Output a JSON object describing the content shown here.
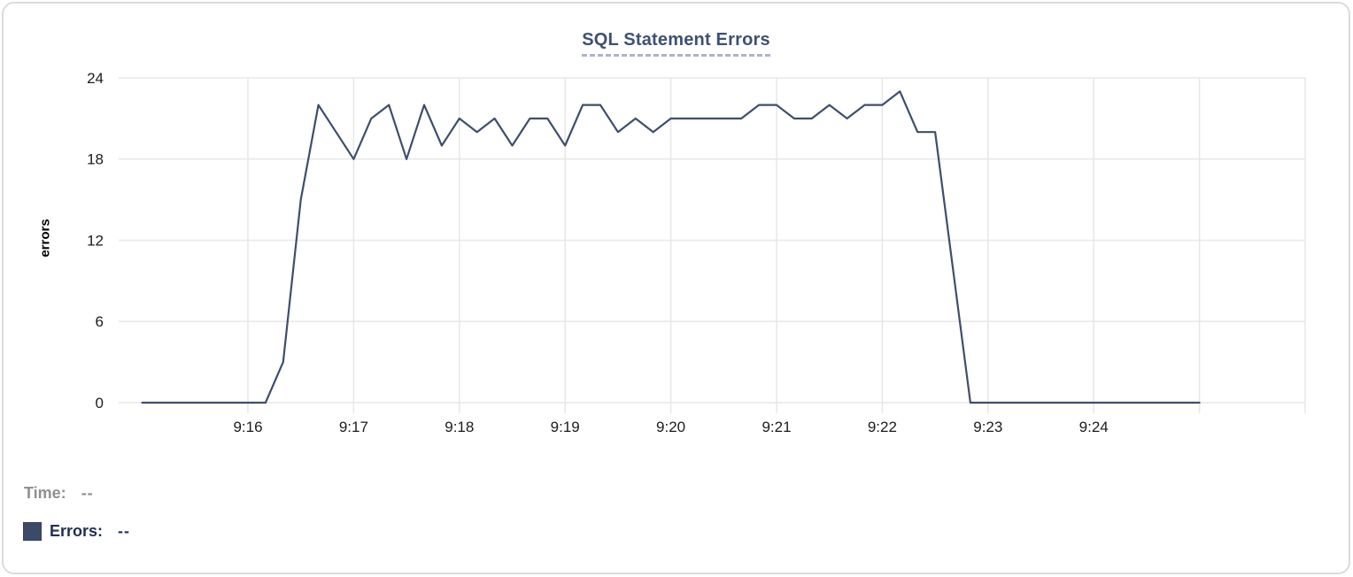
{
  "card": {
    "background": "#ffffff",
    "border_color": "#dbdbdb"
  },
  "chart": {
    "title": "SQL Statement Errors",
    "ylabel": "errors"
  },
  "legend": {
    "time_label": "Time:",
    "time_value": "--",
    "errors_label": "Errors:",
    "errors_value": "--",
    "swatch_color": "#3c4a68"
  },
  "colors": {
    "series_line": "#3e4e6e",
    "gridline": "#e7e7e7",
    "tick_label": "#1b1b1b",
    "title_text": "#3d5173",
    "title_dash": "#a9b5d0",
    "time_legend_text": "#8f9092",
    "errors_legend_text": "#1f2e55"
  },
  "chart_data": {
    "type": "line",
    "title": "SQL Statement Errors",
    "xlabel": "",
    "ylabel": "errors",
    "ylim": [
      0,
      24
    ],
    "y_ticks": [
      0,
      6,
      12,
      18,
      24
    ],
    "x_tick_labels": [
      "9:16",
      "9:17",
      "9:18",
      "9:19",
      "9:20",
      "9:21",
      "9:22",
      "9:23",
      "9:24"
    ],
    "x_range": [
      "9:15:00",
      "9:25:00"
    ],
    "interval_seconds": 10,
    "grid": true,
    "legend_position": "bottom-left",
    "x": [
      "9:15:00",
      "9:15:10",
      "9:15:20",
      "9:15:30",
      "9:15:40",
      "9:15:50",
      "9:16:00",
      "9:16:10",
      "9:16:20",
      "9:16:30",
      "9:16:40",
      "9:16:50",
      "9:17:00",
      "9:17:10",
      "9:17:20",
      "9:17:30",
      "9:17:40",
      "9:17:50",
      "9:18:00",
      "9:18:10",
      "9:18:20",
      "9:18:30",
      "9:18:40",
      "9:18:50",
      "9:19:00",
      "9:19:10",
      "9:19:20",
      "9:19:30",
      "9:19:40",
      "9:19:50",
      "9:20:00",
      "9:20:10",
      "9:20:20",
      "9:20:30",
      "9:20:40",
      "9:20:50",
      "9:21:00",
      "9:21:10",
      "9:21:20",
      "9:21:30",
      "9:21:40",
      "9:21:50",
      "9:22:00",
      "9:22:10",
      "9:22:20",
      "9:22:30",
      "9:22:40",
      "9:22:50",
      "9:23:00",
      "9:23:10",
      "9:23:20",
      "9:23:30",
      "9:23:40",
      "9:23:50",
      "9:24:00",
      "9:24:10",
      "9:24:20",
      "9:24:30",
      "9:24:40",
      "9:24:50",
      "9:25:00"
    ],
    "series": [
      {
        "name": "Errors",
        "color": "#3e4e6e",
        "values": [
          0,
          0,
          0,
          0,
          0,
          0,
          0,
          0,
          3,
          15,
          22,
          20,
          18,
          21,
          22,
          18,
          22,
          19,
          21,
          20,
          21,
          19,
          21,
          21,
          19,
          22,
          22,
          20,
          21,
          20,
          21,
          21,
          21,
          21,
          21,
          22,
          22,
          21,
          21,
          22,
          21,
          22,
          22,
          23,
          20,
          20,
          10,
          0,
          0,
          0,
          0,
          0,
          0,
          0,
          0,
          0,
          0,
          0,
          0,
          0,
          0
        ]
      }
    ]
  }
}
